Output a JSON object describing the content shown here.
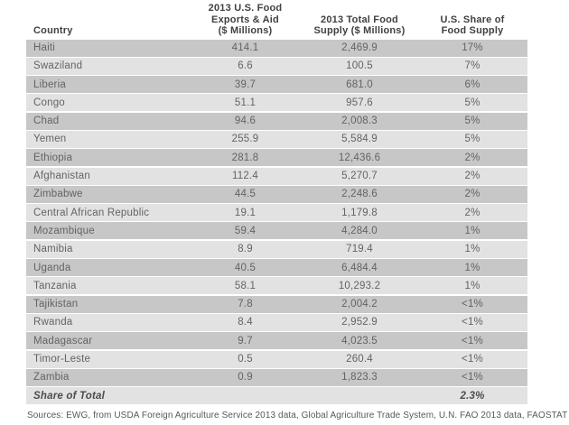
{
  "colors": {
    "row_dark": "#c7c7c7",
    "row_light": "#e2e2e2",
    "header_text": "#414042",
    "row_text": "#626366"
  },
  "table": {
    "columns": {
      "country": "Country",
      "exports": "2013 U.S. Food\nExports & Aid\n($ Millions)",
      "supply": "2013 Total Food\nSupply ($ Millions)",
      "share": "U.S. Share of\nFood Supply"
    },
    "rows": [
      {
        "country": "Haiti",
        "exports": "414.1",
        "supply": "2,469.9",
        "share": "17%"
      },
      {
        "country": "Swaziland",
        "exports": "6.6",
        "supply": "100.5",
        "share": "7%"
      },
      {
        "country": "Liberia",
        "exports": "39.7",
        "supply": "681.0",
        "share": "6%"
      },
      {
        "country": "Congo",
        "exports": "51.1",
        "supply": "957.6",
        "share": "5%"
      },
      {
        "country": "Chad",
        "exports": "94.6",
        "supply": "2,008.3",
        "share": "5%"
      },
      {
        "country": "Yemen",
        "exports": "255.9",
        "supply": "5,584.9",
        "share": "5%"
      },
      {
        "country": "Ethiopia",
        "exports": "281.8",
        "supply": "12,436.6",
        "share": "2%"
      },
      {
        "country": "Afghanistan",
        "exports": "112.4",
        "supply": "5,270.7",
        "share": "2%"
      },
      {
        "country": "Zimbabwe",
        "exports": "44.5",
        "supply": "2,248.6",
        "share": "2%"
      },
      {
        "country": "Central African Republic",
        "exports": "19.1",
        "supply": "1,179.8",
        "share": "2%"
      },
      {
        "country": "Mozambique",
        "exports": "59.4",
        "supply": "4,284.0",
        "share": "1%"
      },
      {
        "country": "Namibia",
        "exports": "8.9",
        "supply": "719.4",
        "share": "1%"
      },
      {
        "country": "Uganda",
        "exports": "40.5",
        "supply": "6,484.4",
        "share": "1%"
      },
      {
        "country": "Tanzania",
        "exports": "58.1",
        "supply": "10,293.2",
        "share": "1%"
      },
      {
        "country": "Tajikistan",
        "exports": "7.8",
        "supply": "2,004.2",
        "share": "<1%"
      },
      {
        "country": "Rwanda",
        "exports": "8.4",
        "supply": "2,952.9",
        "share": "<1%"
      },
      {
        "country": "Madagascar",
        "exports": "9.7",
        "supply": "4,023.5",
        "share": "<1%"
      },
      {
        "country": "Timor-Leste",
        "exports": "0.5",
        "supply": "260.4",
        "share": "<1%"
      },
      {
        "country": "Zambia",
        "exports": "0.9",
        "supply": "1,823.3",
        "share": "<1%"
      }
    ],
    "total_row": {
      "label": "Share of Total",
      "exports": "",
      "supply": "",
      "share": "2.3%"
    }
  },
  "footer": {
    "source": "Sources: EWG, from USDA Foreign Agriculture Service 2013 data, Global Agriculture Trade System, U.N. FAO 2013 data, FAOSTAT"
  },
  "chart_data": {
    "type": "table",
    "title": "",
    "columns": [
      "Country",
      "2013 U.S. Food Exports & Aid ($ Millions)",
      "2013 Total Food Supply ($ Millions)",
      "U.S. Share of Food Supply"
    ],
    "rows": [
      [
        "Haiti",
        414.1,
        2469.9,
        "17%"
      ],
      [
        "Swaziland",
        6.6,
        100.5,
        "7%"
      ],
      [
        "Liberia",
        39.7,
        681.0,
        "6%"
      ],
      [
        "Congo",
        51.1,
        957.6,
        "5%"
      ],
      [
        "Chad",
        94.6,
        2008.3,
        "5%"
      ],
      [
        "Yemen",
        255.9,
        5584.9,
        "5%"
      ],
      [
        "Ethiopia",
        281.8,
        12436.6,
        "2%"
      ],
      [
        "Afghanistan",
        112.4,
        5270.7,
        "2%"
      ],
      [
        "Zimbabwe",
        44.5,
        2248.6,
        "2%"
      ],
      [
        "Central African Republic",
        19.1,
        1179.8,
        "2%"
      ],
      [
        "Mozambique",
        59.4,
        4284.0,
        "1%"
      ],
      [
        "Namibia",
        8.9,
        719.4,
        "1%"
      ],
      [
        "Uganda",
        40.5,
        6484.4,
        "1%"
      ],
      [
        "Tanzania",
        58.1,
        10293.2,
        "1%"
      ],
      [
        "Tajikistan",
        7.8,
        2004.2,
        "<1%"
      ],
      [
        "Rwanda",
        8.4,
        2952.9,
        "<1%"
      ],
      [
        "Madagascar",
        9.7,
        4023.5,
        "<1%"
      ],
      [
        "Timor-Leste",
        0.5,
        260.4,
        "<1%"
      ],
      [
        "Zambia",
        0.9,
        1823.3,
        "<1%"
      ],
      [
        "Share of Total",
        null,
        null,
        "2.3%"
      ]
    ],
    "layout": {
      "striped": true,
      "stripe_start": "dark",
      "legend": "none",
      "grid": false
    }
  }
}
